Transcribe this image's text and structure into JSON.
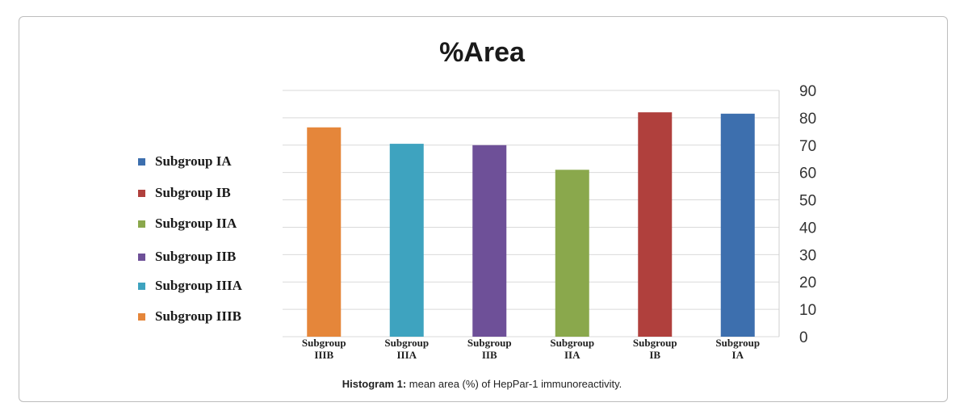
{
  "chart_data": {
    "type": "bar",
    "title": "%Area",
    "categories": [
      "Subgroup IIIB",
      "Subgroup IIIA",
      "Subgroup IIB",
      "Subgroup IIA",
      "Subgroup IB",
      "Subgroup IA"
    ],
    "category_labels": [
      [
        "Subgroup",
        "IIIB"
      ],
      [
        "Subgroup",
        "IIIA"
      ],
      [
        "Subgroup",
        "IIB"
      ],
      [
        "Subgroup",
        "IIA"
      ],
      [
        "Subgroup",
        "IB"
      ],
      [
        "Subgroup",
        "IA"
      ]
    ],
    "values": [
      76.5,
      70.5,
      70,
      61,
      82,
      81.5
    ],
    "colors": [
      "#e5863a",
      "#3ea3bf",
      "#6e5098",
      "#8aa84c",
      "#b0403d",
      "#3d6fae"
    ],
    "yticks": [
      0,
      10,
      20,
      30,
      40,
      50,
      60,
      70,
      80,
      90
    ],
    "ylim": [
      0,
      90
    ],
    "y_axis_side": "right",
    "grid": true,
    "legend_position": "left",
    "legend": [
      {
        "label": "Subgroup IA",
        "color": "#3d6fae"
      },
      {
        "label": "Subgroup IB",
        "color": "#b0403d"
      },
      {
        "label": "Subgroup IIA",
        "color": "#8aa84c"
      },
      {
        "label": "Subgroup IIB",
        "color": "#6e5098"
      },
      {
        "label": "Subgroup IIIA",
        "color": "#3ea3bf"
      },
      {
        "label": "Subgroup IIIB",
        "color": "#e5863a"
      }
    ]
  },
  "caption": {
    "label": "Histogram 1:",
    "text": " mean area (%) of HepPar-1 immunoreactivity."
  }
}
